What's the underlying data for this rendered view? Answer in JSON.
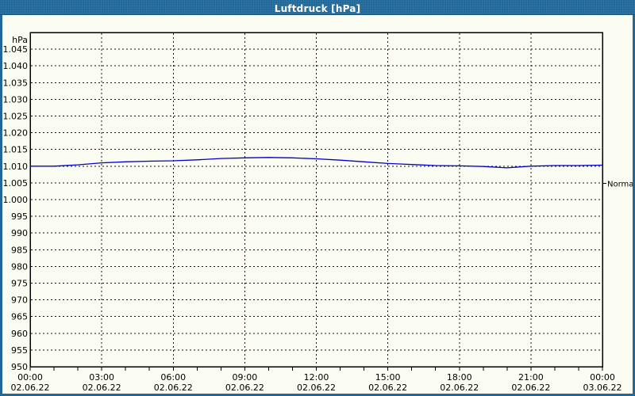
{
  "window": {
    "title": "Luftdruck [hPa]"
  },
  "colors": {
    "titlebar": "#21689a",
    "border": "#21689a",
    "background": "#fcfdf2",
    "grid": "#151515",
    "line": "#0000cc",
    "text": "#000000",
    "title_text": "#ffffff"
  },
  "chart_data": {
    "type": "line",
    "title": "Luftdruck [hPa]",
    "ylabel": "hPa",
    "unit": "hPa",
    "ylim": [
      950,
      1050
    ],
    "grid": "dashed",
    "x_minor_step_hours": 1,
    "xlim_hours": [
      0,
      24
    ],
    "y_ticks": [
      {
        "value": 1045,
        "label": "1.045"
      },
      {
        "value": 1040,
        "label": "1.040"
      },
      {
        "value": 1035,
        "label": "1.035"
      },
      {
        "value": 1030,
        "label": "1.030"
      },
      {
        "value": 1025,
        "label": "1.025"
      },
      {
        "value": 1020,
        "label": "1.020"
      },
      {
        "value": 1015,
        "label": "1.015"
      },
      {
        "value": 1010,
        "label": "1.010"
      },
      {
        "value": 1005,
        "label": "1.005"
      },
      {
        "value": 1000,
        "label": "1.000"
      },
      {
        "value": 995,
        "label": "995"
      },
      {
        "value": 990,
        "label": "990"
      },
      {
        "value": 985,
        "label": "985"
      },
      {
        "value": 980,
        "label": "980"
      },
      {
        "value": 975,
        "label": "975"
      },
      {
        "value": 970,
        "label": "970"
      },
      {
        "value": 965,
        "label": "965"
      },
      {
        "value": 960,
        "label": "960"
      },
      {
        "value": 955,
        "label": "955"
      },
      {
        "value": 950,
        "label": "950"
      }
    ],
    "x_ticks": [
      {
        "hour": 0,
        "time": "00:00",
        "date": "02.06.22"
      },
      {
        "hour": 3,
        "time": "03:00",
        "date": "02.06.22"
      },
      {
        "hour": 6,
        "time": "06:00",
        "date": "02.06.22"
      },
      {
        "hour": 9,
        "time": "09:00",
        "date": "02.06.22"
      },
      {
        "hour": 12,
        "time": "12:00",
        "date": "02.06.22"
      },
      {
        "hour": 15,
        "time": "15:00",
        "date": "02.06.22"
      },
      {
        "hour": 18,
        "time": "18:00",
        "date": "02.06.22"
      },
      {
        "hour": 21,
        "time": "21:00",
        "date": "02.06.22"
      },
      {
        "hour": 24,
        "time": "00:00",
        "date": "03.06.22"
      }
    ],
    "right_marker": {
      "label": "Normal",
      "value": 1004.8
    },
    "series": [
      {
        "name": "Luftdruck",
        "color": "#0000cc",
        "x_hours": [
          0,
          1,
          2,
          3,
          4,
          5,
          6,
          7,
          8,
          9,
          10,
          11,
          12,
          13,
          14,
          15,
          16,
          17,
          18,
          19,
          20,
          21,
          22,
          23,
          24
        ],
        "values": [
          1010.0,
          1010.0,
          1010.4,
          1011.0,
          1011.3,
          1011.5,
          1011.6,
          1011.9,
          1012.3,
          1012.5,
          1012.6,
          1012.5,
          1012.2,
          1011.8,
          1011.3,
          1010.8,
          1010.5,
          1010.2,
          1010.1,
          1009.9,
          1009.5,
          1010.0,
          1010.2,
          1010.2,
          1010.3
        ]
      }
    ]
  }
}
